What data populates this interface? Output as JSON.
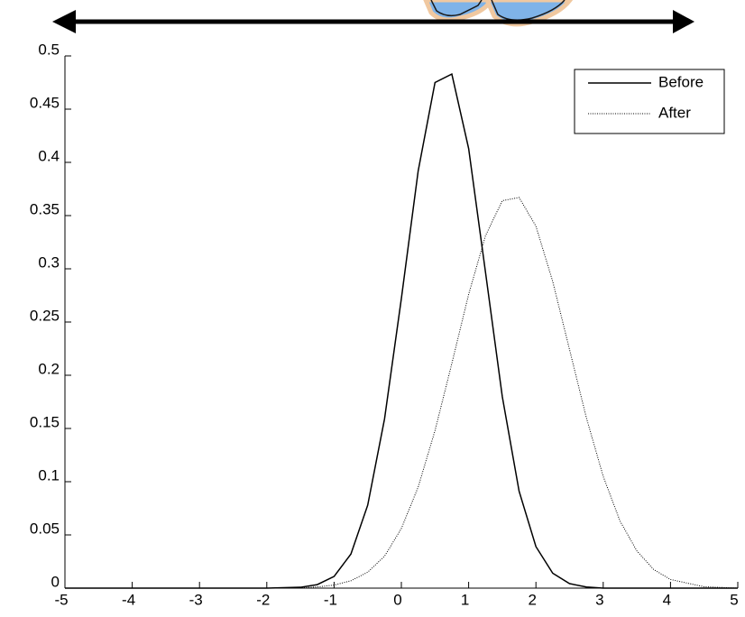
{
  "chart_data": {
    "type": "line",
    "x": [
      -5,
      -4,
      -3,
      -2,
      -1.5,
      -1.25,
      -1,
      -0.75,
      -0.5,
      -0.25,
      0,
      0.25,
      0.5,
      0.75,
      1,
      1.25,
      1.5,
      1.75,
      2,
      2.25,
      2.5,
      2.75,
      3,
      3.25,
      3.5,
      3.75,
      4,
      4.5,
      5
    ],
    "series": [
      {
        "name": "Before",
        "color": "#000000",
        "dash": "solid",
        "values": [
          0,
          0,
          0,
          0,
          0.0008,
          0.0033,
          0.011,
          0.032,
          0.078,
          0.159,
          0.272,
          0.392,
          0.475,
          0.483,
          0.413,
          0.297,
          0.18,
          0.091,
          0.039,
          0.014,
          0.0042,
          0.0011,
          0,
          0,
          0,
          0,
          0,
          0,
          0
        ]
      },
      {
        "name": "After",
        "color": "#000000",
        "dash": "dotted",
        "values": [
          0,
          0,
          0,
          0,
          0.0004,
          0.0011,
          0.0029,
          0.0069,
          0.015,
          0.03,
          0.056,
          0.095,
          0.148,
          0.211,
          0.276,
          0.331,
          0.364,
          0.367,
          0.34,
          0.288,
          0.224,
          0.16,
          0.105,
          0.063,
          0.035,
          0.0175,
          0.0081,
          0.0013,
          0
        ]
      }
    ],
    "xlim": [
      -5,
      5
    ],
    "xticks": [
      -5,
      -4,
      -3,
      -2,
      -1,
      0,
      1,
      2,
      3,
      4,
      5
    ],
    "ylim": [
      0,
      0.5
    ],
    "yticks": [
      0,
      0.05,
      0.1,
      0.15,
      0.2,
      0.25,
      0.3,
      0.35,
      0.4,
      0.45,
      0.5
    ],
    "legend": "top-right"
  }
}
